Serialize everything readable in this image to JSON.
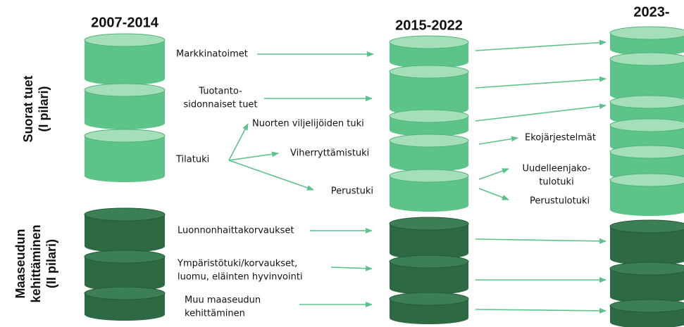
{
  "headers": [
    "2007-2014",
    "2015-2022",
    "2023-"
  ],
  "side_labels": [
    [
      "Suorat tuet",
      "(I pilari)"
    ],
    [
      "Maaseudun",
      "kehittäminen",
      "(II pilari)"
    ]
  ],
  "labels": [
    [
      "Markkinatoimet"
    ],
    [
      "Tuotanto-",
      "sidonnaiset tuet"
    ],
    [
      "Nuorten viljelijöiden tuki"
    ],
    [
      "Tilatuki"
    ],
    [
      "Viherryttämistuki"
    ],
    [
      "Perustuki"
    ],
    [
      "Ekojärjestelmät"
    ],
    [
      "Uudelleenjako-",
      "tulotuki"
    ],
    [
      "Perustulotuki"
    ],
    [
      "Luonnonhaittakorvaukset"
    ],
    [
      "Ympäristötuki/korvaukset,",
      "luomu, eläinten hyvinvointi"
    ],
    [
      "Muu maaseudun",
      "kehittäminen"
    ]
  ]
}
